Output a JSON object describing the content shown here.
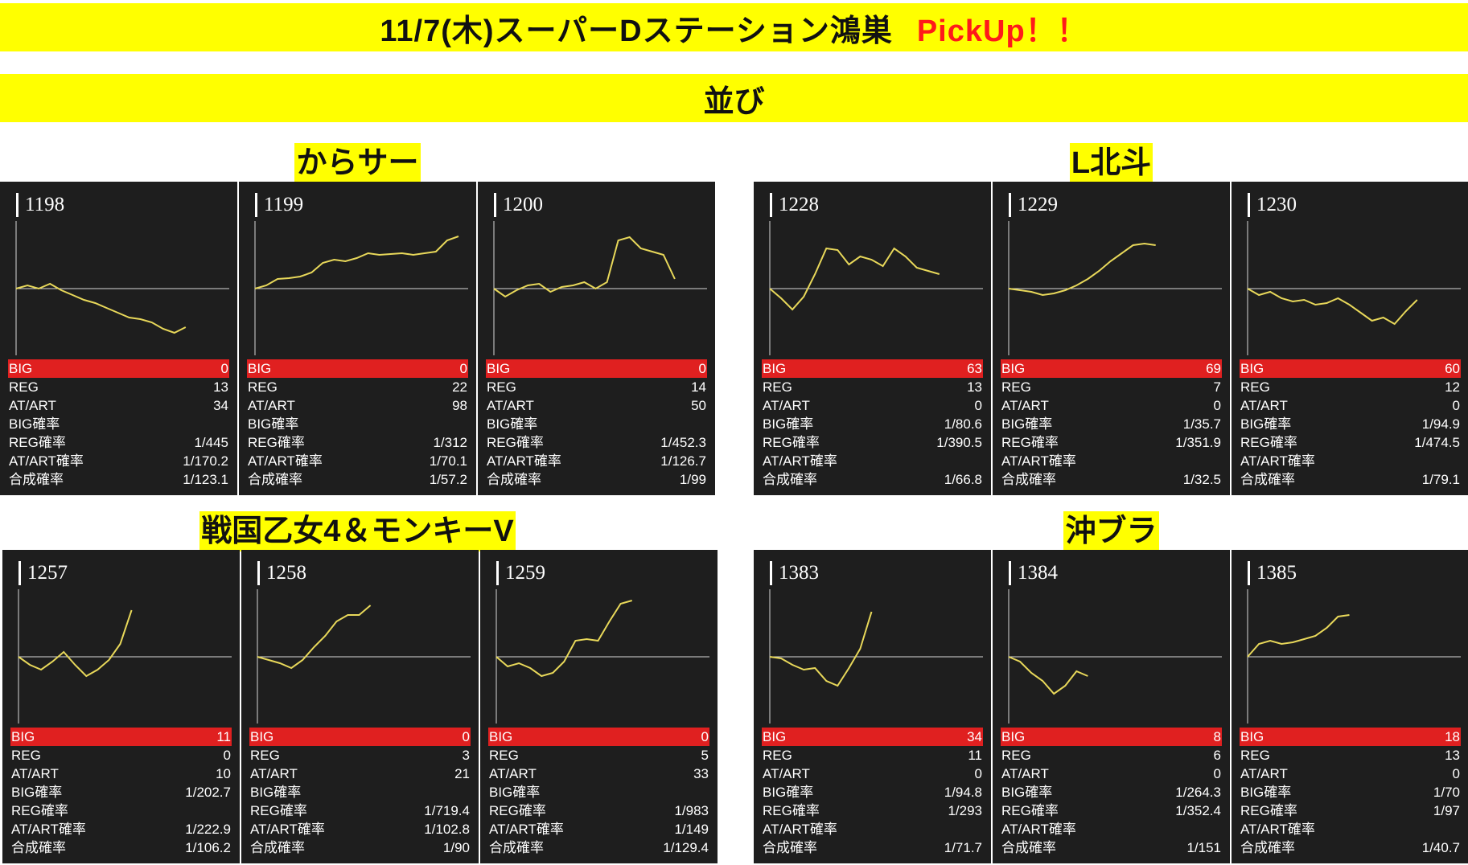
{
  "header": {
    "title": "11/7(木)スーパーDステーション鴻巣",
    "accent": "PickUp！！",
    "accent_color": "#ff1a1a"
  },
  "subheader": {
    "title": "並び"
  },
  "colors": {
    "banner": "#ffff00",
    "panel_bg": "#1e1e1e",
    "big_row": "#e02020",
    "line": "#e8d85a"
  },
  "stat_labels": [
    "BIG",
    "REG",
    "AT/ART",
    "BIG確率",
    "REG確率",
    "AT/ART確率",
    "合成確率"
  ],
  "sections": [
    {
      "title": "からサー",
      "machines": [
        {
          "number": "1198",
          "stats": [
            "0",
            "13",
            "34",
            "",
            "1/445",
            "1/170.2",
            "1/123.1"
          ],
          "graph": [
            [
              0,
              0
            ],
            [
              1,
              -4
            ],
            [
              2,
              0
            ],
            [
              3,
              -6
            ],
            [
              4,
              2
            ],
            [
              5,
              8
            ],
            [
              6,
              14
            ],
            [
              7,
              18
            ],
            [
              8,
              24
            ],
            [
              9,
              30
            ],
            [
              10,
              36
            ],
            [
              11,
              38
            ],
            [
              12,
              42
            ],
            [
              13,
              50
            ],
            [
              14,
              55
            ],
            [
              15,
              48
            ]
          ]
        },
        {
          "number": "1199",
          "stats": [
            "0",
            "22",
            "98",
            "",
            "1/312",
            "1/70.1",
            "1/57.2"
          ],
          "graph": [
            [
              0,
              0
            ],
            [
              1,
              -4
            ],
            [
              2,
              -12
            ],
            [
              3,
              -13
            ],
            [
              4,
              -15
            ],
            [
              5,
              -20
            ],
            [
              6,
              -32
            ],
            [
              7,
              -36
            ],
            [
              8,
              -34
            ],
            [
              9,
              -38
            ],
            [
              10,
              -44
            ],
            [
              11,
              -42
            ],
            [
              12,
              -43
            ],
            [
              13,
              -44
            ],
            [
              14,
              -42
            ],
            [
              15,
              -44
            ],
            [
              16,
              -46
            ],
            [
              17,
              -60
            ],
            [
              18,
              -65
            ]
          ]
        },
        {
          "number": "1200",
          "stats": [
            "0",
            "14",
            "50",
            "",
            "1/452.3",
            "1/126.7",
            "1/99"
          ],
          "graph": [
            [
              0,
              0
            ],
            [
              1,
              10
            ],
            [
              2,
              2
            ],
            [
              3,
              -4
            ],
            [
              4,
              -6
            ],
            [
              5,
              4
            ],
            [
              6,
              -2
            ],
            [
              7,
              -4
            ],
            [
              8,
              -8
            ],
            [
              9,
              0
            ],
            [
              10,
              -8
            ],
            [
              11,
              -60
            ],
            [
              12,
              -64
            ],
            [
              13,
              -50
            ],
            [
              14,
              -46
            ],
            [
              15,
              -42
            ],
            [
              16,
              -12
            ]
          ]
        }
      ]
    },
    {
      "title": "L北斗",
      "machines": [
        {
          "number": "1228",
          "stats": [
            "63",
            "13",
            "0",
            "1/80.6",
            "1/390.5",
            "",
            "1/66.8"
          ],
          "graph": [
            [
              0,
              0
            ],
            [
              1,
              12
            ],
            [
              2,
              26
            ],
            [
              3,
              10
            ],
            [
              4,
              -18
            ],
            [
              5,
              -50
            ],
            [
              6,
              -48
            ],
            [
              7,
              -30
            ],
            [
              8,
              -40
            ],
            [
              9,
              -36
            ],
            [
              10,
              -28
            ],
            [
              11,
              -50
            ],
            [
              12,
              -40
            ],
            [
              13,
              -26
            ],
            [
              14,
              -22
            ],
            [
              15,
              -18
            ]
          ]
        },
        {
          "number": "1229",
          "stats": [
            "69",
            "7",
            "0",
            "1/35.7",
            "1/351.9",
            "",
            "1/32.5"
          ],
          "graph": [
            [
              0,
              0
            ],
            [
              1,
              2
            ],
            [
              2,
              4
            ],
            [
              3,
              8
            ],
            [
              4,
              6
            ],
            [
              5,
              2
            ],
            [
              6,
              -4
            ],
            [
              7,
              -12
            ],
            [
              8,
              -22
            ],
            [
              9,
              -34
            ],
            [
              10,
              -44
            ],
            [
              11,
              -54
            ],
            [
              12,
              -56
            ],
            [
              13,
              -54
            ]
          ]
        },
        {
          "number": "1230",
          "stats": [
            "60",
            "12",
            "0",
            "1/94.9",
            "1/474.5",
            "",
            "1/79.1"
          ],
          "graph": [
            [
              0,
              0
            ],
            [
              1,
              8
            ],
            [
              2,
              4
            ],
            [
              3,
              12
            ],
            [
              4,
              16
            ],
            [
              5,
              14
            ],
            [
              6,
              20
            ],
            [
              7,
              18
            ],
            [
              8,
              12
            ],
            [
              9,
              20
            ],
            [
              10,
              30
            ],
            [
              11,
              40
            ],
            [
              12,
              36
            ],
            [
              13,
              44
            ],
            [
              14,
              28
            ],
            [
              15,
              14
            ]
          ]
        }
      ]
    },
    {
      "title": "戦国乙女4＆モンキーV",
      "machines": [
        {
          "number": "1257",
          "stats": [
            "11",
            "0",
            "10",
            "1/202.7",
            "",
            "1/222.9",
            "1/106.2"
          ],
          "graph": [
            [
              0,
              0
            ],
            [
              1,
              10
            ],
            [
              2,
              16
            ],
            [
              3,
              6
            ],
            [
              4,
              -6
            ],
            [
              5,
              10
            ],
            [
              6,
              24
            ],
            [
              7,
              16
            ],
            [
              8,
              4
            ],
            [
              9,
              -16
            ],
            [
              10,
              -58
            ]
          ]
        },
        {
          "number": "1258",
          "stats": [
            "0",
            "3",
            "21",
            "",
            "1/719.4",
            "1/102.8",
            "1/90"
          ],
          "graph": [
            [
              0,
              0
            ],
            [
              1,
              4
            ],
            [
              2,
              8
            ],
            [
              3,
              14
            ],
            [
              4,
              4
            ],
            [
              5,
              -12
            ],
            [
              6,
              -26
            ],
            [
              7,
              -44
            ],
            [
              8,
              -52
            ],
            [
              9,
              -52
            ],
            [
              10,
              -64
            ]
          ]
        },
        {
          "number": "1259",
          "stats": [
            "0",
            "5",
            "33",
            "",
            "1/983",
            "1/149",
            "1/129.4"
          ],
          "graph": [
            [
              0,
              0
            ],
            [
              1,
              12
            ],
            [
              2,
              8
            ],
            [
              3,
              14
            ],
            [
              4,
              24
            ],
            [
              5,
              20
            ],
            [
              6,
              6
            ],
            [
              7,
              -20
            ],
            [
              8,
              -22
            ],
            [
              9,
              -20
            ],
            [
              10,
              -44
            ],
            [
              11,
              -66
            ],
            [
              12,
              -70
            ]
          ]
        }
      ]
    },
    {
      "title": "沖ブラ",
      "machines": [
        {
          "number": "1383",
          "stats": [
            "34",
            "11",
            "0",
            "1/94.8",
            "1/293",
            "",
            "1/71.7"
          ],
          "graph": [
            [
              0,
              0
            ],
            [
              1,
              2
            ],
            [
              2,
              10
            ],
            [
              3,
              16
            ],
            [
              4,
              14
            ],
            [
              5,
              30
            ],
            [
              6,
              36
            ],
            [
              7,
              14
            ],
            [
              8,
              -10
            ],
            [
              9,
              -56
            ]
          ]
        },
        {
          "number": "1384",
          "stats": [
            "8",
            "6",
            "0",
            "1/264.3",
            "1/352.4",
            "",
            "1/151"
          ],
          "graph": [
            [
              0,
              0
            ],
            [
              1,
              6
            ],
            [
              2,
              20
            ],
            [
              3,
              30
            ],
            [
              4,
              46
            ],
            [
              5,
              36
            ],
            [
              6,
              18
            ],
            [
              7,
              24
            ]
          ]
        },
        {
          "number": "1385",
          "stats": [
            "18",
            "13",
            "0",
            "1/70",
            "1/97",
            "",
            "1/40.7"
          ],
          "graph": [
            [
              0,
              0
            ],
            [
              1,
              -16
            ],
            [
              2,
              -20
            ],
            [
              3,
              -16
            ],
            [
              4,
              -18
            ],
            [
              5,
              -22
            ],
            [
              6,
              -26
            ],
            [
              7,
              -36
            ],
            [
              8,
              -50
            ],
            [
              9,
              -52
            ]
          ]
        }
      ]
    }
  ]
}
